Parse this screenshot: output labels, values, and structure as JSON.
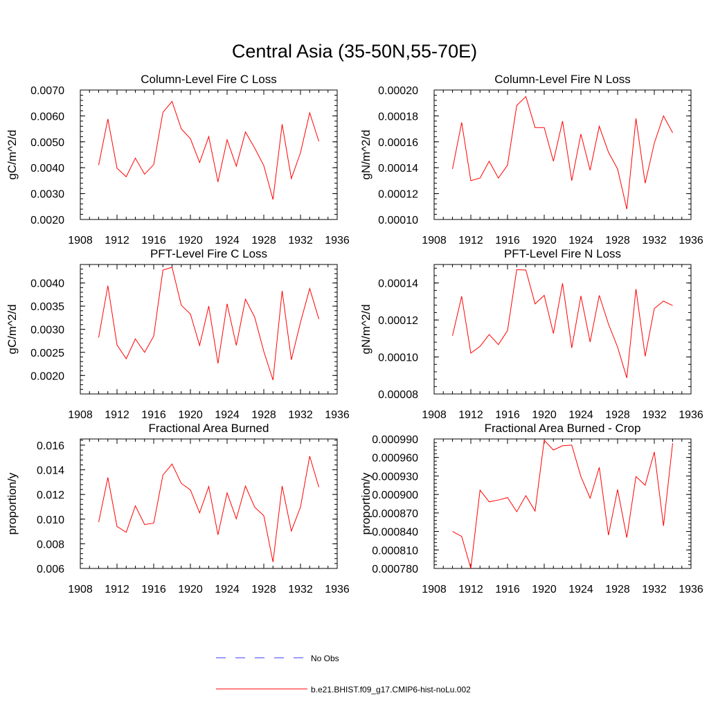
{
  "figure": {
    "title": "Central Asia (35-50N,55-70E)"
  },
  "legend": {
    "items": [
      {
        "label": "No Obs",
        "color": "#3a3aff",
        "dash": "dashed"
      },
      {
        "label": "b.e21.BHIST.f09_g17.CMIP6-hist-noLu.002",
        "color": "#ff0000",
        "dash": "solid"
      }
    ]
  },
  "chart_data": [
    {
      "type": "line",
      "title": "Column-Level Fire C Loss",
      "ylabel": "gC/m^2/d",
      "xlabel": "",
      "xlim": [
        1908,
        1936
      ],
      "ylim": [
        0.002,
        0.007
      ],
      "xticks": [
        "1908",
        "1912",
        "1916",
        "1920",
        "1924",
        "1928",
        "1932",
        "1936"
      ],
      "yticks": [
        "0.0020",
        "0.0030",
        "0.0040",
        "0.0050",
        "0.0060",
        "0.0070"
      ],
      "x": [
        1910,
        1911,
        1912,
        1913,
        1914,
        1915,
        1916,
        1917,
        1918,
        1919,
        1920,
        1921,
        1922,
        1923,
        1924,
        1925,
        1926,
        1927,
        1928,
        1929,
        1930,
        1931,
        1932,
        1933,
        1934
      ],
      "series": [
        {
          "values": [
            0.0041,
            0.00588,
            0.00398,
            0.00365,
            0.00437,
            0.00375,
            0.00412,
            0.00614,
            0.00656,
            0.0055,
            0.00512,
            0.0042,
            0.0052,
            0.00345,
            0.00508,
            0.00406,
            0.00538,
            0.00476,
            0.00408,
            0.00277,
            0.00568,
            0.00358,
            0.00458,
            0.00612,
            0.00502
          ],
          "color": "#ff0000"
        }
      ]
    },
    {
      "type": "line",
      "title": "Column-Level Fire N Loss",
      "ylabel": "gN/m^2/d",
      "xlabel": "",
      "xlim": [
        1908,
        1936
      ],
      "ylim": [
        0.0001,
        0.0002
      ],
      "xticks": [
        "1908",
        "1912",
        "1916",
        "1920",
        "1924",
        "1928",
        "1932",
        "1936"
      ],
      "yticks": [
        "0.00010",
        "0.00012",
        "0.00014",
        "0.00016",
        "0.00018",
        "0.00020"
      ],
      "x": [
        1910,
        1911,
        1912,
        1913,
        1914,
        1915,
        1916,
        1917,
        1918,
        1919,
        1920,
        1921,
        1922,
        1923,
        1924,
        1925,
        1926,
        1927,
        1928,
        1929,
        1930,
        1931,
        1932,
        1933,
        1934
      ],
      "series": [
        {
          "values": [
            0.000139,
            0.000175,
            0.00013,
            0.000132,
            0.000145,
            0.000132,
            0.000142,
            0.000188,
            0.000195,
            0.000171,
            0.000171,
            0.000145,
            0.000176,
            0.00013,
            0.000166,
            0.000138,
            0.000172,
            0.000152,
            0.000139,
            0.000108,
            0.000178,
            0.000128,
            0.000159,
            0.00018,
            0.000167
          ],
          "color": "#ff0000"
        }
      ]
    },
    {
      "type": "line",
      "title": "PFT-Level Fire C Loss",
      "ylabel": "gC/m^2/d",
      "xlabel": "",
      "xlim": [
        1908,
        1936
      ],
      "ylim": [
        0.0016,
        0.0044
      ],
      "xticks": [
        "1908",
        "1912",
        "1916",
        "1920",
        "1924",
        "1928",
        "1932",
        "1936"
      ],
      "yticks": [
        "0.0020",
        "0.0025",
        "0.0030",
        "0.0035",
        "0.0040"
      ],
      "x": [
        1910,
        1911,
        1912,
        1913,
        1914,
        1915,
        1916,
        1917,
        1918,
        1919,
        1920,
        1921,
        1922,
        1923,
        1924,
        1925,
        1926,
        1927,
        1928,
        1929,
        1930,
        1931,
        1932,
        1933,
        1934
      ],
      "series": [
        {
          "values": [
            0.00282,
            0.00394,
            0.00266,
            0.00236,
            0.00279,
            0.0025,
            0.00285,
            0.00428,
            0.00434,
            0.00352,
            0.00333,
            0.00265,
            0.0035,
            0.00226,
            0.00355,
            0.00265,
            0.00365,
            0.00326,
            0.00252,
            0.0019,
            0.00383,
            0.00234,
            0.00315,
            0.00388,
            0.00322
          ],
          "color": "#ff0000"
        }
      ]
    },
    {
      "type": "line",
      "title": "PFT-Level Fire N Loss",
      "ylabel": "gN/m^2/d",
      "xlabel": "",
      "xlim": [
        1908,
        1936
      ],
      "ylim": [
        8e-05,
        0.00015
      ],
      "xticks": [
        "1908",
        "1912",
        "1916",
        "1920",
        "1924",
        "1928",
        "1932",
        "1936"
      ],
      "yticks": [
        "0.00008",
        "0.00010",
        "0.00012",
        "0.00014"
      ],
      "x": [
        1910,
        1911,
        1912,
        1913,
        1914,
        1915,
        1916,
        1917,
        1918,
        1919,
        1920,
        1921,
        1922,
        1923,
        1924,
        1925,
        1926,
        1927,
        1928,
        1929,
        1930,
        1931,
        1932,
        1933,
        1934
      ],
      "series": [
        {
          "values": [
            0.0001115,
            0.0001328,
            0.0001021,
            0.0001057,
            0.0001121,
            0.0001067,
            0.0001143,
            0.0001472,
            0.000147,
            0.0001287,
            0.0001333,
            0.0001127,
            0.0001398,
            0.0001049,
            0.000133,
            0.0001081,
            0.0001333,
            0.0001178,
            0.0001053,
            8.87e-05,
            0.0001367,
            0.0001004,
            0.0001262,
            0.0001302,
            0.0001278
          ],
          "color": "#ff0000"
        }
      ]
    },
    {
      "type": "line",
      "title": "Fractional Area Burned",
      "ylabel": "proportion/y",
      "xlabel": "",
      "xlim": [
        1908,
        1936
      ],
      "ylim": [
        0.006,
        0.0165
      ],
      "xticks": [
        "1908",
        "1912",
        "1916",
        "1920",
        "1924",
        "1928",
        "1932",
        "1936"
      ],
      "yticks": [
        "0.006",
        "0.008",
        "0.010",
        "0.012",
        "0.014",
        "0.016"
      ],
      "x": [
        1910,
        1911,
        1912,
        1913,
        1914,
        1915,
        1916,
        1917,
        1918,
        1919,
        1920,
        1921,
        1922,
        1923,
        1924,
        1925,
        1926,
        1927,
        1928,
        1929,
        1930,
        1931,
        1932,
        1933,
        1934
      ],
      "series": [
        {
          "values": [
            0.00975,
            0.01338,
            0.0094,
            0.00893,
            0.01108,
            0.00956,
            0.00967,
            0.01357,
            0.01447,
            0.0129,
            0.01237,
            0.01051,
            0.01264,
            0.00873,
            0.01213,
            0.01002,
            0.01268,
            0.01097,
            0.01028,
            0.00652,
            0.01268,
            0.00903,
            0.01098,
            0.0151,
            0.01259
          ],
          "color": "#ff0000"
        }
      ]
    },
    {
      "type": "line",
      "title": "Fractional Area Burned - Crop",
      "ylabel": "proportion/y",
      "xlabel": "",
      "xlim": [
        1908,
        1936
      ],
      "ylim": [
        0.00078,
        0.00099
      ],
      "xticks": [
        "1908",
        "1912",
        "1916",
        "1920",
        "1924",
        "1928",
        "1932",
        "1936"
      ],
      "yticks": [
        "0.000780",
        "0.000810",
        "0.000840",
        "0.000870",
        "0.000900",
        "0.000930",
        "0.000960",
        "0.000990"
      ],
      "x": [
        1910,
        1911,
        1912,
        1913,
        1914,
        1915,
        1916,
        1917,
        1918,
        1919,
        1920,
        1921,
        1922,
        1923,
        1924,
        1925,
        1926,
        1927,
        1928,
        1929,
        1930,
        1931,
        1932,
        1933,
        1934
      ],
      "series": [
        {
          "values": [
            0.00084,
            0.000832,
            0.00078,
            0.000907,
            0.000888,
            0.000891,
            0.000895,
            0.000872,
            0.000898,
            0.000873,
            0.000988,
            0.000972,
            0.000979,
            0.00098,
            0.000929,
            0.000894,
            0.000944,
            0.000834,
            0.000908,
            0.00083,
            0.000929,
            0.000915,
            0.000969,
            0.000849,
            0.000983
          ],
          "color": "#ff0000"
        }
      ]
    }
  ]
}
